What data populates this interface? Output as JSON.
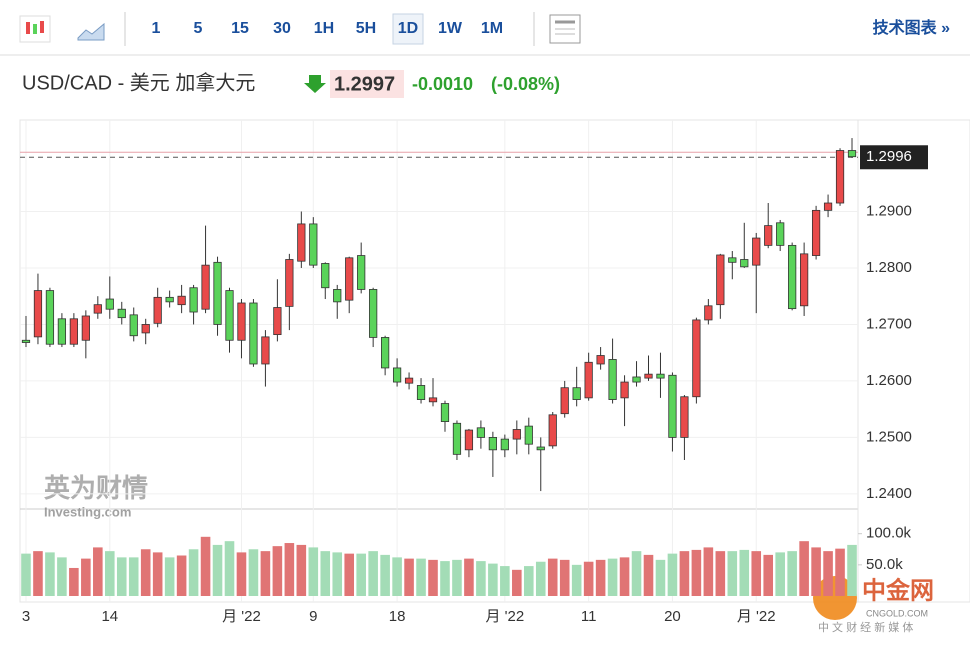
{
  "toolbar": {
    "intervals": [
      "1",
      "5",
      "15",
      "30",
      "1H",
      "5H",
      "1D",
      "1W",
      "1M"
    ],
    "link": "技术图表 »"
  },
  "header": {
    "title": "USD/CAD - 美元 加拿大元",
    "price": "1.2997",
    "change": "-0.0010",
    "change_pct": "(-0.08%)"
  },
  "watermarks": {
    "brand": "英为财情",
    "site": "Investing.com",
    "logo": "中金网",
    "logo_site": "CNGOLD.COM",
    "logo_tagline": "中 文 财 经 新 媒 体"
  },
  "chart_data": {
    "type": "candlestick",
    "categories": [
      "3",
      null,
      null,
      null,
      null,
      null,
      null,
      "14",
      null,
      null,
      null,
      null,
      null,
      null,
      null,
      null,
      null,
      null,
      "月 '22",
      null,
      null,
      null,
      null,
      null,
      "9",
      null,
      null,
      null,
      null,
      null,
      null,
      "18",
      null,
      null,
      null,
      null,
      null,
      null,
      null,
      null,
      "月 '22",
      null,
      null,
      null,
      null,
      null,
      null,
      "11",
      null,
      null,
      null,
      null,
      null,
      null,
      "20",
      null,
      null,
      null,
      null,
      null,
      null,
      "月 '22",
      null,
      null,
      null,
      null,
      null,
      null,
      null,
      null
    ],
    "open": [
      1.2672,
      1.2678,
      1.276,
      1.271,
      1.2665,
      1.2672,
      1.272,
      1.2745,
      1.2727,
      1.2717,
      1.2685,
      1.2702,
      1.2748,
      1.2735,
      1.2765,
      1.2727,
      1.281,
      1.276,
      1.2672,
      1.2738,
      1.263,
      1.2682,
      1.2732,
      1.2812,
      1.2878,
      1.2808,
      1.2762,
      1.2743,
      1.2822,
      1.2762,
      1.2677,
      1.2623,
      1.2596,
      1.2592,
      1.2563,
      1.256,
      1.2525,
      1.2478,
      1.2517,
      1.25,
      1.2497,
      1.2497,
      1.252,
      1.2483,
      1.2485,
      1.2542,
      1.2588,
      1.257,
      1.263,
      1.2638,
      1.257,
      1.2607,
      1.2605,
      1.2612,
      1.261,
      1.25,
      1.2572,
      1.2708,
      1.2735,
      1.2818,
      1.2815,
      1.2805,
      1.284,
      1.288,
      1.284,
      1.2733,
      1.2822,
      1.2902,
      1.2915,
      1.3008
    ],
    "high": [
      1.2715,
      1.279,
      1.2765,
      1.272,
      1.272,
      1.2725,
      1.275,
      1.2785,
      1.274,
      1.273,
      1.271,
      1.2765,
      1.276,
      1.277,
      1.277,
      1.2875,
      1.282,
      1.2765,
      1.2745,
      1.2745,
      1.269,
      1.278,
      1.2825,
      1.29,
      1.289,
      1.281,
      1.277,
      1.282,
      1.2845,
      1.2765,
      1.268,
      1.264,
      1.2615,
      1.2605,
      1.2605,
      1.2565,
      1.253,
      1.2515,
      1.253,
      1.251,
      1.2505,
      1.253,
      1.2535,
      1.25,
      1.2545,
      1.26,
      1.2625,
      1.265,
      1.266,
      1.2675,
      1.261,
      1.2635,
      1.2645,
      1.265,
      1.2615,
      1.2575,
      1.2712,
      1.2745,
      1.2825,
      1.283,
      1.288,
      1.2862,
      1.2915,
      1.2885,
      1.2845,
      1.2845,
      1.291,
      1.293,
      1.3012,
      1.303
    ],
    "low": [
      1.266,
      1.2665,
      1.266,
      1.266,
      1.266,
      1.264,
      1.271,
      1.271,
      1.27,
      1.267,
      1.2665,
      1.2695,
      1.273,
      1.272,
      1.27,
      1.272,
      1.268,
      1.265,
      1.264,
      1.2625,
      1.259,
      1.267,
      1.269,
      1.28,
      1.28,
      1.2745,
      1.271,
      1.272,
      1.2755,
      1.266,
      1.261,
      1.259,
      1.2585,
      1.256,
      1.2555,
      1.251,
      1.246,
      1.2465,
      1.248,
      1.243,
      1.2465,
      1.247,
      1.247,
      1.2405,
      1.248,
      1.2535,
      1.2555,
      1.2565,
      1.262,
      1.256,
      1.252,
      1.259,
      1.26,
      1.257,
      1.2475,
      1.246,
      1.256,
      1.27,
      1.271,
      1.278,
      1.28,
      1.272,
      1.2835,
      1.283,
      1.2725,
      1.2715,
      1.2815,
      1.289,
      1.291,
      1.2995
    ],
    "close": [
      1.2668,
      1.276,
      1.2665,
      1.2665,
      1.271,
      1.2715,
      1.2735,
      1.2727,
      1.2712,
      1.268,
      1.27,
      1.2748,
      1.274,
      1.275,
      1.2722,
      1.2805,
      1.27,
      1.2672,
      1.2738,
      1.263,
      1.2678,
      1.273,
      1.2815,
      1.2878,
      1.2805,
      1.2765,
      1.274,
      1.2818,
      1.2762,
      1.2677,
      1.2623,
      1.2598,
      1.2605,
      1.2567,
      1.257,
      1.2528,
      1.247,
      1.2513,
      1.25,
      1.2478,
      1.2478,
      1.2514,
      1.2488,
      1.2478,
      1.254,
      1.2588,
      1.2567,
      1.2633,
      1.2645,
      1.2567,
      1.2598,
      1.2598,
      1.2612,
      1.2605,
      1.25,
      1.2572,
      1.2708,
      1.2733,
      1.2823,
      1.281,
      1.2802,
      1.2853,
      1.2875,
      1.284,
      1.2728,
      1.2825,
      1.2902,
      1.2915,
      1.3008,
      1.2997
    ],
    "volume": [
      68000,
      72000,
      70000,
      62000,
      45000,
      60000,
      78000,
      72000,
      62000,
      62000,
      75000,
      70000,
      62000,
      65000,
      75000,
      95000,
      82000,
      88000,
      70000,
      75000,
      72000,
      80000,
      85000,
      82000,
      78000,
      72000,
      70000,
      68000,
      68000,
      72000,
      66000,
      62000,
      60000,
      60000,
      58000,
      56000,
      58000,
      60000,
      56000,
      52000,
      48000,
      42000,
      48000,
      55000,
      60000,
      58000,
      50000,
      55000,
      58000,
      60000,
      62000,
      72000,
      66000,
      58000,
      68000,
      72000,
      74000,
      78000,
      72000,
      72000,
      74000,
      72000,
      66000,
      70000,
      72000,
      88000,
      78000,
      72000,
      76000,
      82000
    ],
    "up_color": "#e84a4a",
    "down_color": "#5ad35a",
    "up_volume_color": "#e07474",
    "down_volume_color": "#a3dcb6",
    "ylim": [
      1.2375,
      1.3062
    ],
    "yticks": [
      {
        "value": 1.24,
        "label": "1.2400"
      },
      {
        "value": 1.25,
        "label": "1.2500"
      },
      {
        "value": 1.26,
        "label": "1.2600"
      },
      {
        "value": 1.27,
        "label": "1.2700"
      },
      {
        "value": 1.28,
        "label": "1.2800"
      },
      {
        "value": 1.29,
        "label": "1.2900"
      }
    ],
    "volume_ylim": [
      0,
      130000
    ],
    "volume_ticks": [
      {
        "value": 50000,
        "label": "50.0k"
      },
      {
        "value": 100000,
        "label": "100.0k"
      }
    ],
    "last_price": {
      "value": 1.2996,
      "label": "1.2996"
    },
    "reference_line": 1.3005,
    "grid": true
  }
}
